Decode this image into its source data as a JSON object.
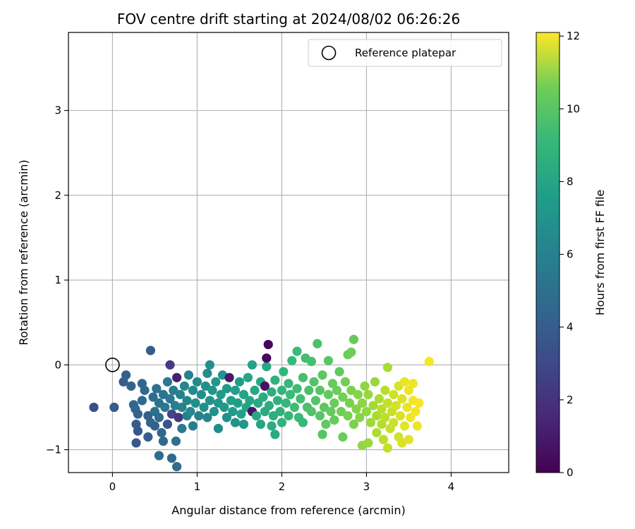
{
  "chart_data": {
    "type": "scatter",
    "title": "FOV centre drift starting at 2024/08/02 06:26:26",
    "xlabel": "Angular distance from reference (arcmin)",
    "ylabel": "Rotation from reference (arcmin)",
    "xlim": [
      -0.52,
      4.68
    ],
    "ylim": [
      -1.27,
      3.92
    ],
    "x_ticks": [
      0,
      1,
      2,
      3,
      4
    ],
    "y_ticks": [
      -1,
      0,
      1,
      2,
      3
    ],
    "x_tick_labels": [
      "0",
      "1",
      "2",
      "3",
      "4"
    ],
    "y_tick_labels": [
      "−1",
      "0",
      "1",
      "2",
      "3"
    ],
    "grid": true,
    "legend": {
      "position": "top-right",
      "entries": [
        "Reference platepar"
      ]
    },
    "reference_point": {
      "x": 0,
      "y": 0,
      "label": "Reference platepar"
    },
    "colorbar": {
      "label": "Hours from first FF file",
      "min": 0,
      "max": 12.1,
      "ticks": [
        0,
        2,
        4,
        6,
        8,
        10,
        12
      ],
      "tick_labels": [
        "0",
        "2",
        "4",
        "6",
        "8",
        "10",
        "12"
      ],
      "colormap": "viridis"
    },
    "points": [
      [
        -0.22,
        -0.5,
        2.9
      ],
      [
        0.02,
        -0.5,
        3.5
      ],
      [
        0.13,
        -0.2,
        3.6
      ],
      [
        0.16,
        -0.12,
        3.7
      ],
      [
        0.22,
        -0.25,
        3.8
      ],
      [
        0.25,
        -0.47,
        3.9
      ],
      [
        0.27,
        -0.52,
        4.0
      ],
      [
        0.3,
        -0.58,
        3.8
      ],
      [
        0.28,
        -0.7,
        3.5
      ],
      [
        0.3,
        -0.78,
        3.3
      ],
      [
        0.28,
        -0.92,
        3.2
      ],
      [
        0.35,
        -0.42,
        4.1
      ],
      [
        0.38,
        -0.3,
        4.2
      ],
      [
        0.35,
        -0.22,
        4.0
      ],
      [
        0.42,
        -0.6,
        3.7
      ],
      [
        0.45,
        -0.68,
        3.9
      ],
      [
        0.42,
        -0.85,
        3.6
      ],
      [
        0.45,
        0.17,
        3.5
      ],
      [
        0.48,
        -0.38,
        4.3
      ],
      [
        0.5,
        -0.55,
        4.4
      ],
      [
        0.5,
        -0.72,
        3.8
      ],
      [
        0.52,
        -0.28,
        4.5
      ],
      [
        0.55,
        -0.45,
        4.6
      ],
      [
        0.55,
        -0.62,
        4.2
      ],
      [
        0.58,
        -0.8,
        4.0
      ],
      [
        0.6,
        -0.35,
        4.7
      ],
      [
        0.6,
        -0.9,
        4.1
      ],
      [
        0.62,
        -0.5,
        4.8
      ],
      [
        0.65,
        -0.2,
        4.9
      ],
      [
        0.65,
        -0.7,
        3.2
      ],
      [
        0.68,
        -0.4,
        5.0
      ],
      [
        0.68,
        0.0,
        2.2
      ],
      [
        0.55,
        -1.07,
        4.3
      ],
      [
        0.7,
        -0.58,
        2.6
      ],
      [
        0.7,
        -1.1,
        4.2
      ],
      [
        0.72,
        -0.3,
        5.1
      ],
      [
        0.74,
        -0.48,
        5.2
      ],
      [
        0.76,
        -0.15,
        1.1
      ],
      [
        0.75,
        -0.9,
        4.5
      ],
      [
        0.76,
        -1.2,
        4.3
      ],
      [
        0.78,
        -0.62,
        2.0
      ],
      [
        0.8,
        -0.35,
        5.3
      ],
      [
        0.82,
        -0.5,
        5.4
      ],
      [
        0.82,
        -0.75,
        4.9
      ],
      [
        0.85,
        -0.25,
        5.5
      ],
      [
        0.88,
        -0.42,
        5.6
      ],
      [
        0.88,
        -0.6,
        5.0
      ],
      [
        0.9,
        -0.12,
        5.4
      ],
      [
        0.92,
        -0.55,
        5.7
      ],
      [
        0.95,
        -0.3,
        5.8
      ],
      [
        0.95,
        -0.72,
        5.1
      ],
      [
        0.98,
        -0.45,
        5.9
      ],
      [
        1.0,
        -0.2,
        5.8
      ],
      [
        1.02,
        -0.6,
        5.3
      ],
      [
        1.05,
        -0.35,
        6.0
      ],
      [
        1.08,
        -0.5,
        6.1
      ],
      [
        1.1,
        -0.25,
        6.0
      ],
      [
        1.12,
        -0.62,
        5.5
      ],
      [
        1.12,
        -0.1,
        5.9
      ],
      [
        1.15,
        -0.42,
        6.2
      ],
      [
        1.18,
        -0.3,
        6.3
      ],
      [
        1.15,
        0.0,
        6.0
      ],
      [
        1.2,
        -0.55,
        6.1
      ],
      [
        1.22,
        -0.2,
        6.4
      ],
      [
        1.25,
        -0.45,
        6.4
      ],
      [
        1.25,
        -0.75,
        5.8
      ],
      [
        1.28,
        -0.35,
        6.5
      ],
      [
        1.3,
        -0.12,
        6.3
      ],
      [
        1.32,
        -0.5,
        6.5
      ],
      [
        1.35,
        -0.28,
        6.6
      ],
      [
        1.35,
        -0.62,
        6.0
      ],
      [
        1.38,
        -0.15,
        0.9
      ],
      [
        1.4,
        -0.42,
        6.7
      ],
      [
        1.42,
        -0.55,
        6.6
      ],
      [
        1.45,
        -0.3,
        6.7
      ],
      [
        1.45,
        -0.68,
        6.2
      ],
      [
        1.48,
        -0.45,
        6.8
      ],
      [
        1.5,
        -0.2,
        6.8
      ],
      [
        1.52,
        -0.58,
        6.9
      ],
      [
        1.55,
        -0.35,
        7.0
      ],
      [
        1.55,
        -0.7,
        6.5
      ],
      [
        1.58,
        -0.5,
        7.0
      ],
      [
        1.6,
        -0.15,
        7.1
      ],
      [
        1.62,
        -0.42,
        7.1
      ],
      [
        1.65,
        -0.55,
        0.7
      ],
      [
        1.65,
        0.0,
        7.0
      ],
      [
        1.68,
        -0.3,
        7.2
      ],
      [
        1.7,
        -0.6,
        7.2
      ],
      [
        1.72,
        -0.45,
        7.3
      ],
      [
        1.75,
        -0.2,
        7.3
      ],
      [
        1.75,
        -0.7,
        7.1
      ],
      [
        1.78,
        -0.38,
        7.4
      ],
      [
        1.8,
        -0.55,
        7.4
      ],
      [
        1.8,
        -0.25,
        0.6
      ],
      [
        1.82,
        -0.02,
        7.2
      ],
      [
        1.82,
        0.08,
        0.3
      ],
      [
        1.84,
        0.24,
        0.2
      ],
      [
        1.85,
        -0.48,
        7.5
      ],
      [
        1.88,
        -0.32,
        7.6
      ],
      [
        1.88,
        -0.72,
        7.5
      ],
      [
        1.9,
        -0.6,
        7.6
      ],
      [
        1.92,
        -0.18,
        7.7
      ],
      [
        1.92,
        -0.82,
        7.4
      ],
      [
        1.95,
        -0.42,
        7.7
      ],
      [
        1.98,
        -0.55,
        7.8
      ],
      [
        2.0,
        -0.3,
        7.9
      ],
      [
        2.0,
        -0.68,
        7.8
      ],
      [
        2.02,
        -0.08,
        8.0
      ],
      [
        2.05,
        -0.45,
        8.0
      ],
      [
        2.08,
        -0.22,
        8.1
      ],
      [
        2.08,
        -0.6,
        8.0
      ],
      [
        2.1,
        -0.35,
        8.2
      ],
      [
        2.12,
        0.05,
        8.1
      ],
      [
        2.15,
        -0.5,
        8.3
      ],
      [
        2.18,
        0.16,
        8.2
      ],
      [
        2.18,
        -0.28,
        8.3
      ],
      [
        2.2,
        -0.62,
        8.2
      ],
      [
        2.22,
        -0.4,
        8.4
      ],
      [
        2.25,
        -0.15,
        8.5
      ],
      [
        2.25,
        -0.68,
        8.1
      ],
      [
        2.28,
        0.08,
        8.4
      ],
      [
        2.3,
        -0.5,
        8.6
      ],
      [
        2.32,
        -0.3,
        8.6
      ],
      [
        2.35,
        0.04,
        8.5
      ],
      [
        2.35,
        -0.55,
        8.7
      ],
      [
        2.38,
        -0.2,
        8.8
      ],
      [
        2.4,
        -0.42,
        8.8
      ],
      [
        2.42,
        0.25,
        8.6
      ],
      [
        2.45,
        -0.6,
        8.9
      ],
      [
        2.45,
        -0.3,
        8.9
      ],
      [
        2.48,
        -0.12,
        9.0
      ],
      [
        2.48,
        -0.82,
        8.8
      ],
      [
        2.5,
        -0.5,
        9.0
      ],
      [
        2.52,
        -0.7,
        9.1
      ],
      [
        2.55,
        -0.35,
        9.1
      ],
      [
        2.55,
        0.05,
        8.9
      ],
      [
        2.58,
        -0.55,
        9.2
      ],
      [
        2.6,
        -0.22,
        9.2
      ],
      [
        2.62,
        -0.45,
        9.3
      ],
      [
        2.62,
        -0.65,
        9.2
      ],
      [
        2.65,
        -0.3,
        9.3
      ],
      [
        2.68,
        -0.08,
        9.1
      ],
      [
        2.7,
        -0.55,
        9.4
      ],
      [
        2.72,
        -0.38,
        9.5
      ],
      [
        2.72,
        -0.85,
        9.3
      ],
      [
        2.75,
        -0.2,
        9.5
      ],
      [
        2.78,
        0.12,
        9.3
      ],
      [
        2.78,
        -0.6,
        9.6
      ],
      [
        2.8,
        -0.45,
        9.6
      ],
      [
        2.82,
        0.15,
        9.4
      ],
      [
        2.82,
        -0.3,
        9.7
      ],
      [
        2.85,
        0.3,
        9.2
      ],
      [
        2.85,
        -0.7,
        9.7
      ],
      [
        2.88,
        -0.52,
        9.8
      ],
      [
        2.9,
        -0.35,
        9.8
      ],
      [
        2.92,
        -0.62,
        9.9
      ],
      [
        2.95,
        -0.45,
        10.0
      ],
      [
        2.95,
        -0.95,
        10.1
      ],
      [
        2.98,
        -0.25,
        10.0
      ],
      [
        3.0,
        -0.55,
        10.1
      ],
      [
        3.02,
        -0.92,
        10.2
      ],
      [
        3.02,
        -0.35,
        10.2
      ],
      [
        3.05,
        -0.68,
        10.3
      ],
      [
        3.08,
        -0.48,
        10.4
      ],
      [
        3.1,
        -0.2,
        10.2
      ],
      [
        3.12,
        -0.6,
        10.5
      ],
      [
        3.12,
        -0.8,
        10.6
      ],
      [
        3.15,
        -0.4,
        10.6
      ],
      [
        3.18,
        -0.7,
        10.7
      ],
      [
        3.18,
        -0.52,
        10.8
      ],
      [
        3.2,
        -0.88,
        10.9
      ],
      [
        3.22,
        -0.3,
        10.8
      ],
      [
        3.22,
        -0.62,
        10.9
      ],
      [
        3.25,
        -0.98,
        11.0
      ],
      [
        3.25,
        -0.45,
        11.0
      ],
      [
        3.25,
        -0.03,
        10.5
      ],
      [
        3.28,
        -0.75,
        11.1
      ],
      [
        3.3,
        -0.55,
        11.1
      ],
      [
        3.32,
        -0.35,
        11.2
      ],
      [
        3.32,
        -0.68,
        11.2
      ],
      [
        3.35,
        -0.48,
        11.3
      ],
      [
        3.38,
        -0.85,
        11.3
      ],
      [
        3.38,
        -0.25,
        11.4
      ],
      [
        3.4,
        -0.6,
        11.4
      ],
      [
        3.42,
        -0.4,
        11.5
      ],
      [
        3.42,
        -0.92,
        11.4
      ],
      [
        3.45,
        -0.72,
        11.6
      ],
      [
        3.45,
        -0.2,
        11.7
      ],
      [
        3.48,
        -0.5,
        11.7
      ],
      [
        3.5,
        -0.3,
        11.8
      ],
      [
        3.5,
        -0.88,
        11.6
      ],
      [
        3.52,
        -0.62,
        11.8
      ],
      [
        3.55,
        -0.42,
        11.9
      ],
      [
        3.55,
        -0.22,
        11.8
      ],
      [
        3.58,
        -0.55,
        11.9
      ],
      [
        3.6,
        -0.72,
        11.8
      ],
      [
        3.62,
        -0.45,
        12.0
      ],
      [
        3.74,
        0.04,
        12.0
      ]
    ]
  }
}
